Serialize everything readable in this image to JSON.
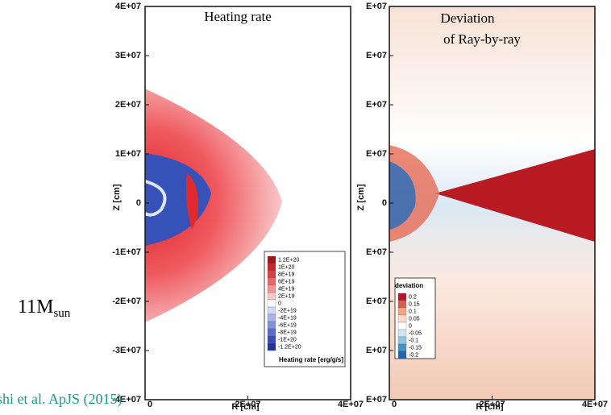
{
  "left_panel": {
    "title": "Heating rate",
    "yticks": [
      "4E+07",
      "3E+07",
      "2E+07",
      "1E+07",
      "0",
      "-1E+07",
      "-2E+07",
      "-3E+07",
      "-4E+07"
    ],
    "xticks": [
      "0",
      "2E+07",
      "4E+07"
    ],
    "xlabel": "R [cm]",
    "ylabel": "Z [cm]",
    "legend": {
      "title": "Heating rate [erg/g/s]",
      "labels": [
        "1.2E+20",
        "1E+20",
        "8E+19",
        "6E+19",
        "4E+19",
        "2E+19",
        "0",
        "-2E+19",
        "-4E+19",
        "-6E+19",
        "-8E+19",
        "-1E+20",
        "-1.2E+20"
      ]
    }
  },
  "right_panel": {
    "title": [
      "Deviation",
      "of Ray-by-ray"
    ],
    "yticks": [
      "E+07",
      "E+07",
      "E+07",
      "E+07",
      "0",
      "E+07",
      "E+07",
      "E+07",
      "E+07"
    ],
    "xticks": [
      "0",
      "2E+07",
      "4E+07"
    ],
    "xlabel": "R [cm]",
    "ylabel": "Z [cm]",
    "legend": {
      "title": "deviation",
      "labels": [
        "0.2",
        "0.15",
        "0.1",
        "0.05",
        "0",
        "-0.05",
        "-0.1",
        "-0.15",
        "-0.2"
      ]
    }
  },
  "mass_label": {
    "main": "11M",
    "sub": "sun"
  },
  "citation": "shi et al. ApJS (2015)"
}
